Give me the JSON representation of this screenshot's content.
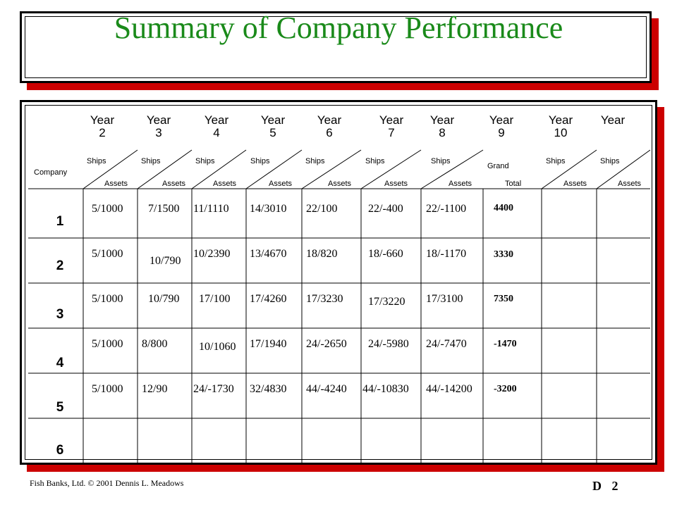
{
  "title": "Summary of Company Performance",
  "header": {
    "company_label": "Company",
    "years": [
      {
        "label": "Year",
        "num": "2"
      },
      {
        "label": "Year",
        "num": "3"
      },
      {
        "label": "Year",
        "num": "4"
      },
      {
        "label": "Year",
        "num": "5"
      },
      {
        "label": "Year",
        "num": "6"
      },
      {
        "label": "Year",
        "num": "7"
      },
      {
        "label": "Year",
        "num": "8"
      },
      {
        "label": "Year",
        "num": "9"
      },
      {
        "label": "Year",
        "num": "10"
      },
      {
        "label": "Year",
        "num": ""
      }
    ],
    "sub": [
      {
        "top": "Ships",
        "bottom": "Assets"
      },
      {
        "top": "Ships",
        "bottom": "Assets"
      },
      {
        "top": "Ships",
        "bottom": "Assets"
      },
      {
        "top": "Ships",
        "bottom": "Assets"
      },
      {
        "top": "Ships",
        "bottom": "Assets"
      },
      {
        "top": "Ships",
        "bottom": "Assets"
      },
      {
        "top": "Ships",
        "bottom": "Assets"
      },
      {
        "top": "Grand",
        "bottom": "Total"
      },
      {
        "top": "Ships",
        "bottom": "Assets"
      },
      {
        "top": "Ships",
        "bottom": "Assets"
      }
    ]
  },
  "rows": [
    {
      "label": "1",
      "cells": [
        "5/1000",
        "7/1500",
        "11/1110",
        "14/3010",
        "22/100",
        "22/-400",
        "22/-1100"
      ],
      "total": "4400"
    },
    {
      "label": "2",
      "cells": [
        "5/1000",
        "10/790",
        "10/2390",
        "13/4670",
        "18/820",
        "18/-660",
        "18/-1170"
      ],
      "total": "3330"
    },
    {
      "label": "3",
      "cells": [
        "5/1000",
        "10/790",
        "17/100",
        "17/4260",
        "17/3230",
        "17/3220",
        "17/3100"
      ],
      "total": "7350"
    },
    {
      "label": "4",
      "cells": [
        "5/1000",
        "8/800",
        "10/1060",
        "17/1940",
        "24/-2650",
        "24/-5980",
        "24/-7470"
      ],
      "total": "-1470"
    },
    {
      "label": "5",
      "cells": [
        "5/1000",
        "12/90",
        "24/-1730",
        "32/4830",
        "44/-4240",
        "44/-10830",
        "44/-14200"
      ],
      "total": "-3200"
    },
    {
      "label": "6",
      "cells": [
        "",
        "",
        "",
        "",
        "",
        "",
        ""
      ],
      "total": ""
    }
  ],
  "footer": {
    "left": "Fish Banks, Ltd. © 2001 Dennis L. Meadows",
    "section": "D",
    "page": "2"
  }
}
